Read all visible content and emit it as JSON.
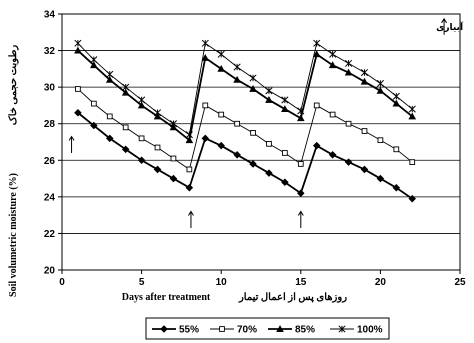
{
  "chart_data": {
    "type": "line",
    "xlabel": "Days after treatment",
    "xlabel_fa": "روزهای پس از اعمال تیمار",
    "ylabel": "Soil volumetric moisture (%)",
    "ylabel_fa": "رطوبت حجمی خاک",
    "xlim": [
      0,
      25
    ],
    "ylim": [
      20,
      34
    ],
    "xticks": [
      0,
      5,
      10,
      15,
      20,
      25
    ],
    "yticks": [
      20,
      22,
      24,
      26,
      28,
      30,
      32,
      34
    ],
    "grid": "horizontal",
    "legend_position": "bottom",
    "annotation": {
      "text": "آبیاری",
      "x": 24,
      "y": 33.3
    },
    "irrigation_arrows": [
      {
        "x": 0.6,
        "y": 27.3
      },
      {
        "x": 8.1,
        "y": 23.2
      },
      {
        "x": 15.0,
        "y": 23.2
      }
    ],
    "x": [
      1,
      2,
      3,
      4,
      5,
      6,
      7,
      8,
      9,
      10,
      11,
      12,
      13,
      14,
      15,
      16,
      17,
      18,
      19,
      20,
      21,
      22
    ],
    "series": [
      {
        "name": "55%",
        "marker": "diamond",
        "values": [
          28.6,
          27.9,
          27.2,
          26.6,
          26.0,
          25.5,
          25.0,
          24.5,
          27.2,
          26.8,
          26.3,
          25.8,
          25.3,
          24.8,
          24.2,
          26.8,
          26.3,
          25.9,
          25.5,
          25.0,
          24.5,
          23.9
        ]
      },
      {
        "name": "70%",
        "marker": "square",
        "values": [
          29.9,
          29.1,
          28.4,
          27.8,
          27.2,
          26.7,
          26.1,
          25.5,
          29.0,
          28.5,
          28.0,
          27.5,
          26.9,
          26.4,
          25.8,
          29.0,
          28.5,
          28.0,
          27.6,
          27.1,
          26.6,
          25.9
        ]
      },
      {
        "name": "85%",
        "marker": "triangle",
        "values": [
          32.0,
          31.2,
          30.4,
          29.7,
          29.0,
          28.4,
          27.8,
          27.1,
          31.6,
          31.0,
          30.4,
          29.9,
          29.3,
          28.8,
          28.3,
          31.8,
          31.2,
          30.8,
          30.3,
          29.8,
          29.1,
          28.4
        ]
      },
      {
        "name": "100%",
        "marker": "star",
        "values": [
          32.4,
          31.5,
          30.7,
          30.0,
          29.3,
          28.6,
          28.0,
          27.4,
          32.4,
          31.8,
          31.1,
          30.5,
          29.8,
          29.3,
          28.7,
          32.4,
          31.8,
          31.3,
          30.8,
          30.2,
          29.5,
          28.8
        ]
      }
    ]
  }
}
